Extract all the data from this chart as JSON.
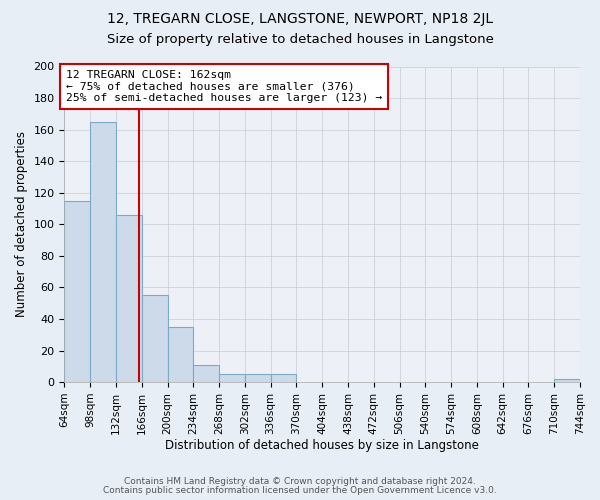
{
  "title": "12, TREGARN CLOSE, LANGSTONE, NEWPORT, NP18 2JL",
  "subtitle": "Size of property relative to detached houses in Langstone",
  "xlabel": "Distribution of detached houses by size in Langstone",
  "ylabel": "Number of detached properties",
  "bin_edges": [
    64,
    98,
    132,
    166,
    200,
    234,
    268,
    302,
    336,
    370,
    404,
    438,
    472,
    506,
    540,
    574,
    608,
    642,
    676,
    710,
    744
  ],
  "bin_counts": [
    115,
    165,
    106,
    55,
    35,
    11,
    5,
    5,
    5,
    0,
    0,
    0,
    0,
    0,
    0,
    0,
    0,
    0,
    0,
    2
  ],
  "property_size": 162,
  "bar_color": "#ccdaea",
  "bar_edge_color": "#7aaac8",
  "vline_color": "#cc0000",
  "annotation_box_color": "#cc0000",
  "annotation_line1": "12 TREGARN CLOSE: 162sqm",
  "annotation_line2": "← 75% of detached houses are smaller (376)",
  "annotation_line3": "25% of semi-detached houses are larger (123) →",
  "ylim": [
    0,
    200
  ],
  "yticks": [
    0,
    20,
    40,
    60,
    80,
    100,
    120,
    140,
    160,
    180,
    200
  ],
  "background_color": "#e8eef5",
  "plot_background_color": "#edf1f7",
  "grid_color": "#c5cdd8",
  "footer_line1": "Contains HM Land Registry data © Crown copyright and database right 2024.",
  "footer_line2": "Contains public sector information licensed under the Open Government Licence v3.0.",
  "title_fontsize": 10,
  "subtitle_fontsize": 9.5,
  "tick_fontsize": 7.5,
  "axis_label_fontsize": 8.5
}
